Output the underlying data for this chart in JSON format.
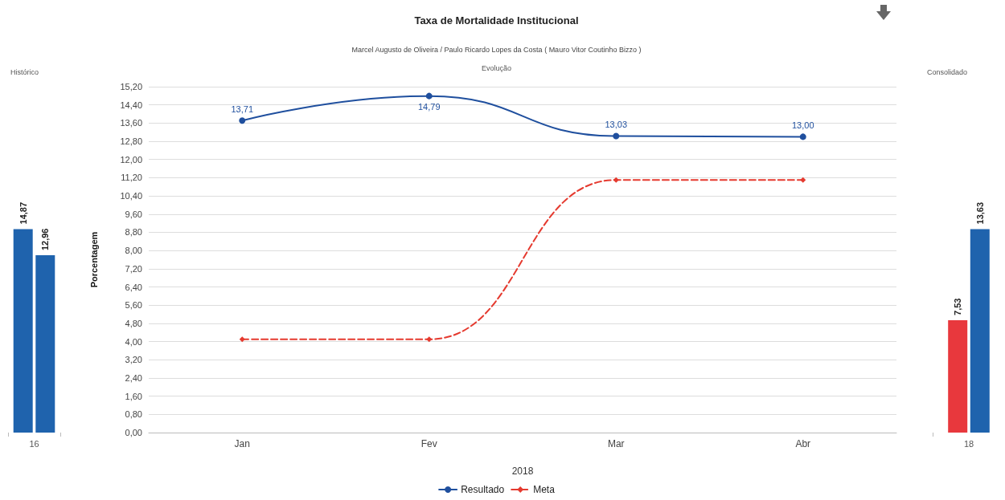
{
  "chart_data": [
    {
      "type": "bar",
      "title": "Histórico",
      "categories": [
        "16"
      ],
      "tick_labels": "x",
      "series": [
        {
          "color": "#1f63ad",
          "values": [
            14.87
          ],
          "value_labels": [
            "14,87"
          ]
        },
        {
          "color": "#1f63ad",
          "values": [
            12.96
          ],
          "value_labels": [
            "12,96"
          ]
        }
      ]
    },
    {
      "type": "line",
      "title": "Taxa de Mortalidade Institucional",
      "subtitle": "Marcel Augusto de Oliveira / Paulo Ricardo Lopes da Costa ( Mauro Vitor Coutinho Bizzo )",
      "annotations": [
        "Evolução"
      ],
      "xlabel": "2018",
      "ylabel": "Porcentagem",
      "categories": [
        "Jan",
        "Fev",
        "Mar",
        "Abr"
      ],
      "ylim": [
        0,
        15.2
      ],
      "yticks": [
        {
          "value": 0,
          "label": "0,00"
        },
        {
          "value": 0.8,
          "label": "0,80"
        },
        {
          "value": 1.6,
          "label": "1,60"
        },
        {
          "value": 2.4,
          "label": "2,40"
        },
        {
          "value": 3.2,
          "label": "3,20"
        },
        {
          "value": 4,
          "label": "4,00"
        },
        {
          "value": 4.8,
          "label": "4,80"
        },
        {
          "value": 5.6,
          "label": "5,60"
        },
        {
          "value": 6.4,
          "label": "6,40"
        },
        {
          "value": 7.2,
          "label": "7,20"
        },
        {
          "value": 8,
          "label": "8,00"
        },
        {
          "value": 8.8,
          "label": "8,80"
        },
        {
          "value": 9.6,
          "label": "9,60"
        },
        {
          "value": 10.4,
          "label": "10,40"
        },
        {
          "value": 11.2,
          "label": "11,20"
        },
        {
          "value": 12,
          "label": "12,00"
        },
        {
          "value": 12.8,
          "label": "12,80"
        },
        {
          "value": 13.6,
          "label": "13,60"
        },
        {
          "value": 14.4,
          "label": "14,40"
        },
        {
          "value": 15.2,
          "label": "15,20"
        }
      ],
      "grid": "y",
      "legend": "bottom",
      "series": [
        {
          "name": "Resultado",
          "color": "#1f4f9e",
          "marker": "circle",
          "line_style": "solid",
          "values": [
            13.71,
            14.79,
            13.03,
            13.0
          ],
          "value_labels": [
            "13,71",
            "14,79",
            "13,03",
            "13,00"
          ]
        },
        {
          "name": "Meta",
          "color": "#e53a2f",
          "marker": "diamond",
          "line_style": "dashed",
          "values": [
            4.1,
            4.1,
            11.1,
            11.1
          ]
        }
      ]
    },
    {
      "type": "bar",
      "title": "Consolidado",
      "categories": [
        "18"
      ],
      "tick_labels": "x",
      "series": [
        {
          "color": "#e8383d",
          "values": [
            7.53
          ],
          "value_labels": [
            "7,53"
          ]
        },
        {
          "color": "#1f63ad",
          "values": [
            13.63
          ],
          "value_labels": [
            "13,63"
          ]
        }
      ]
    }
  ]
}
